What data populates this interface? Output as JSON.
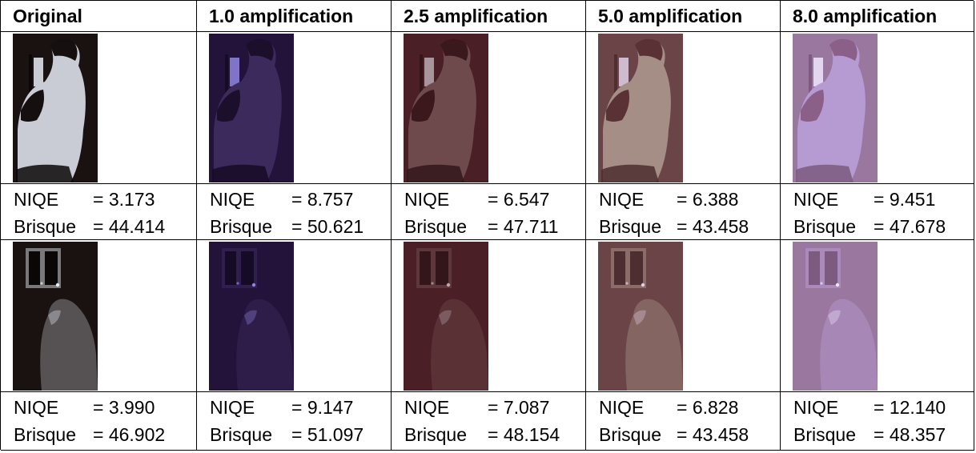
{
  "table": {
    "headers": [
      "Original",
      "1.0 amplification",
      "2.5 amplification",
      "5.0 amplification",
      "8.0 amplification"
    ],
    "metric_labels": {
      "niqe": "NIQE",
      "brisque": "Brisque"
    },
    "rows": [
      {
        "image_subject": "black-and-white cat sitting near window",
        "metrics": [
          {
            "niqe": "= 3.173",
            "brisque": "= 44.414"
          },
          {
            "niqe": "= 8.757",
            "brisque": "= 50.621"
          },
          {
            "niqe": "= 6.547",
            "brisque": "= 47.711"
          },
          {
            "niqe": "= 6.388",
            "brisque": "= 43.458"
          },
          {
            "niqe": "= 9.451",
            "brisque": "= 47.678"
          }
        ]
      },
      {
        "image_subject": "cat in dark room with window at night",
        "metrics": [
          {
            "niqe": "= 3.990",
            "brisque": "= 46.902"
          },
          {
            "niqe": "= 9.147",
            "brisque": "= 51.097"
          },
          {
            "niqe": "= 7.087",
            "brisque": "= 48.154"
          },
          {
            "niqe": "= 6.828",
            "brisque": "= 43.458"
          },
          {
            "niqe": "= 12.140",
            "brisque": "= 48.357"
          }
        ]
      }
    ]
  },
  "tints": [
    "#000000",
    "#2a1740",
    "#4a2226",
    "#6e4a4a",
    "#9d7aa8"
  ]
}
